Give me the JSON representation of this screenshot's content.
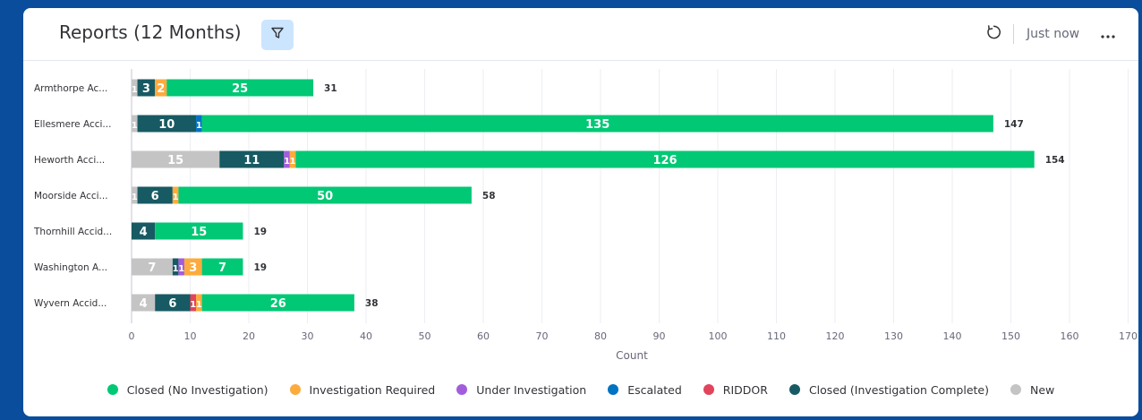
{
  "header": {
    "title": "Reports (12 Months)",
    "updated": "Just now"
  },
  "icons": {
    "filter": "filter-icon",
    "refresh": "refresh-icon",
    "more": "more-icon"
  },
  "chart_data": {
    "type": "bar",
    "orientation": "horizontal",
    "stacked": true,
    "categories": [
      "Armthorpe Ac...",
      "Ellesmere Acci...",
      "Heworth Acci...",
      "Moorside Acci...",
      "Thornhill Accid...",
      "Washington A...",
      "Wyvern Accid..."
    ],
    "series": [
      {
        "name": "New",
        "color": "#c4c4c4",
        "values": [
          1,
          1,
          15,
          1,
          0,
          7,
          4
        ]
      },
      {
        "name": "Closed (Investigation Complete)",
        "color": "#175a63",
        "values": [
          3,
          10,
          11,
          6,
          4,
          1,
          6
        ]
      },
      {
        "name": "RIDDOR",
        "color": "#e2445c",
        "values": [
          0,
          0,
          0,
          0,
          0,
          0,
          1
        ]
      },
      {
        "name": "Escalated",
        "color": "#0073c2",
        "values": [
          0,
          1,
          0,
          0,
          0,
          0,
          0
        ]
      },
      {
        "name": "Under Investigation",
        "color": "#a25ddc",
        "values": [
          0,
          0,
          1,
          0,
          0,
          1,
          0
        ]
      },
      {
        "name": "Investigation Required",
        "color": "#fdab3d",
        "values": [
          2,
          0,
          1,
          1,
          0,
          3,
          1
        ]
      },
      {
        "name": "Closed (No Investigation)",
        "color": "#00c875",
        "values": [
          25,
          135,
          126,
          50,
          15,
          7,
          26
        ]
      }
    ],
    "totals": [
      31,
      147,
      154,
      58,
      19,
      19,
      38
    ],
    "xlabel": "Count",
    "ylabel": "",
    "xlim": [
      0,
      170
    ],
    "xticks": [
      0,
      10,
      20,
      30,
      40,
      50,
      60,
      70,
      80,
      90,
      100,
      110,
      120,
      130,
      140,
      150,
      160,
      170
    ],
    "grid": "vertical",
    "legend_position": "bottom",
    "legend_order": [
      "Closed (No Investigation)",
      "Investigation Required",
      "Under Investigation",
      "Escalated",
      "RIDDOR",
      "Closed (Investigation Complete)",
      "New"
    ]
  }
}
